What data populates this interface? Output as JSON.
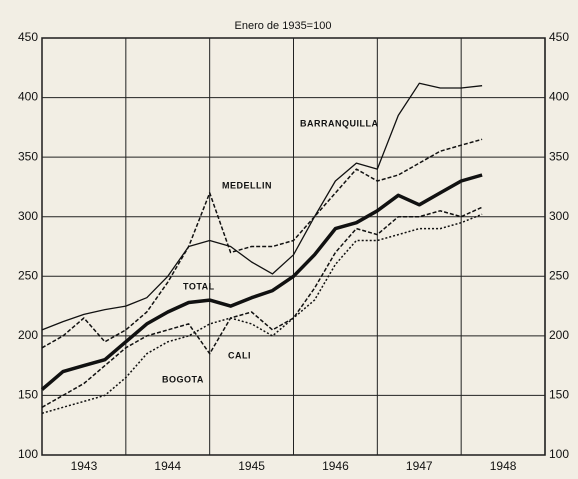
{
  "chart_data": {
    "type": "line",
    "title": "Enero de 1935=100",
    "x": [
      1943,
      1943.25,
      1943.5,
      1943.75,
      1944,
      1944.25,
      1944.5,
      1944.75,
      1945,
      1945.25,
      1945.5,
      1945.75,
      1946,
      1946.25,
      1946.5,
      1946.75,
      1947,
      1947.25,
      1947.5,
      1947.75,
      1948,
      1948.25
    ],
    "series": [
      {
        "name": "BARRANQUILLA",
        "color": "#111111",
        "style": "solid",
        "values": [
          205,
          212,
          218,
          222,
          225,
          232,
          250,
          275,
          280,
          275,
          262,
          252,
          268,
          300,
          330,
          345,
          340,
          385,
          412,
          408,
          408,
          410
        ]
      },
      {
        "name": "MEDELLIN",
        "color": "#111111",
        "style": "dashed",
        "values": [
          190,
          200,
          215,
          195,
          205,
          220,
          245,
          275,
          320,
          270,
          275,
          275,
          280,
          300,
          320,
          340,
          330,
          335,
          345,
          355,
          360,
          365
        ]
      },
      {
        "name": "TOTAL",
        "color": "#111111",
        "style": "thick",
        "values": [
          155,
          170,
          175,
          180,
          195,
          210,
          220,
          228,
          230,
          225,
          232,
          238,
          250,
          268,
          290,
          295,
          305,
          318,
          310,
          320,
          330,
          335
        ]
      },
      {
        "name": "CALI",
        "color": "#111111",
        "style": "dashed",
        "values": [
          140,
          150,
          160,
          175,
          190,
          200,
          205,
          210,
          185,
          215,
          220,
          205,
          215,
          240,
          270,
          290,
          285,
          300,
          300,
          305,
          300,
          308
        ]
      },
      {
        "name": "BOGOTA",
        "color": "#111111",
        "style": "dotted",
        "values": [
          135,
          140,
          145,
          150,
          165,
          185,
          195,
          200,
          210,
          215,
          210,
          200,
          215,
          230,
          260,
          280,
          280,
          285,
          290,
          290,
          295,
          302
        ]
      }
    ],
    "xlim": [
      1943,
      1949
    ],
    "xticks": [
      1943,
      1944,
      1945,
      1946,
      1947,
      1948
    ],
    "ylim": [
      100,
      450
    ],
    "yticks": [
      100,
      150,
      200,
      250,
      300,
      350,
      400,
      450
    ],
    "grid": true
  }
}
